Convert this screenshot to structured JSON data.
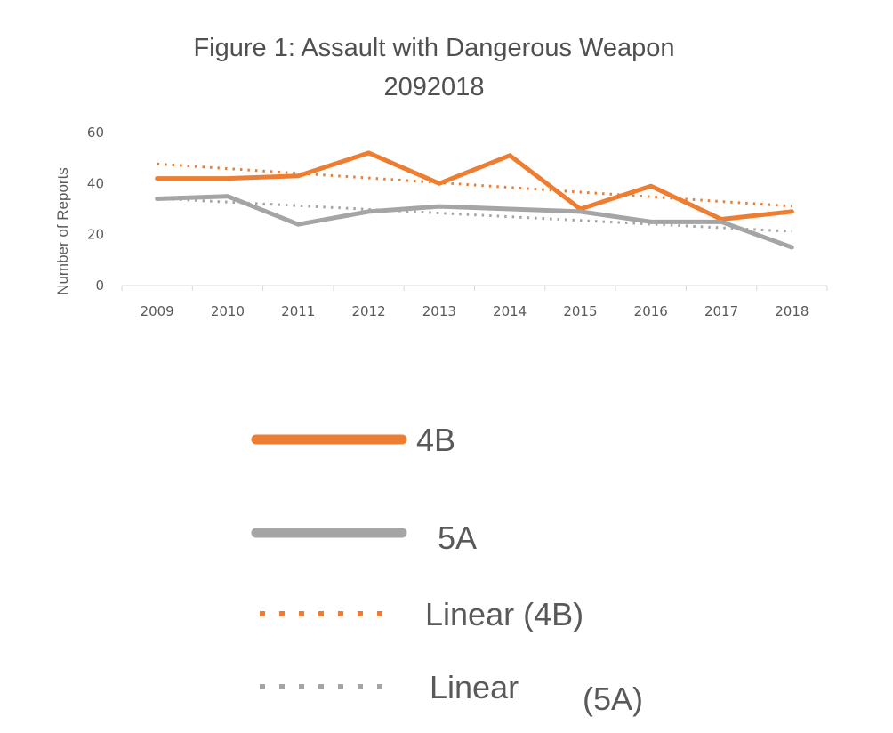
{
  "chart_data": {
    "type": "line",
    "title": "Figure 1: Assault with Dangerous Weapon",
    "subtitle": "2092018",
    "xlabel": "",
    "ylabel": "Number of Reports",
    "categories": [
      "2009",
      "2010",
      "2011",
      "2012",
      "2013",
      "2014",
      "2015",
      "2016",
      "2017",
      "2018"
    ],
    "yticks": [
      "0",
      "20",
      "40",
      "60"
    ],
    "ylim": [
      0,
      60
    ],
    "grid": false,
    "legend_placement": "bottom",
    "series": [
      {
        "name": "4B",
        "color": "#ed7d31",
        "style": "solid",
        "values": [
          42,
          42,
          43,
          52,
          40,
          51,
          30,
          39,
          26,
          29
        ]
      },
      {
        "name": "5A",
        "color": "#a5a5a5",
        "style": "solid",
        "values": [
          34,
          35,
          24,
          29,
          31,
          30,
          29,
          25,
          25,
          15
        ]
      }
    ],
    "trendlines": [
      {
        "name": "Linear (4B)",
        "of": "4B",
        "color": "#ed7d31",
        "style": "dotted"
      },
      {
        "name": "Linear (5A)",
        "of": "5A",
        "color": "#a5a5a5",
        "style": "dotted"
      }
    ],
    "legend": [
      {
        "label": "4B"
      },
      {
        "label": "5A"
      },
      {
        "label": "Linear (4B)"
      },
      {
        "label_main": "Linear",
        "label_suffix": "(5A)"
      }
    ]
  }
}
